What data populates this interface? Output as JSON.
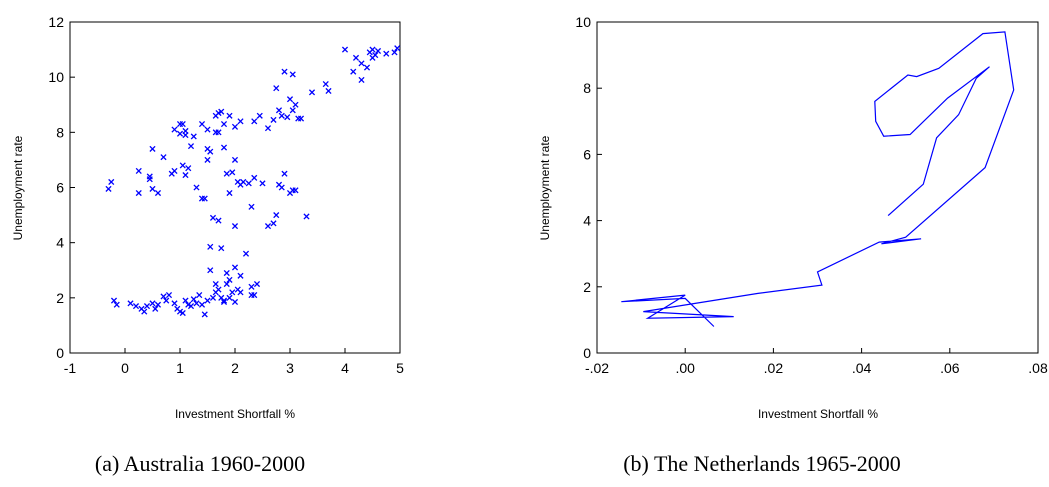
{
  "chart_data": [
    {
      "type": "scatter",
      "caption": "(a) Australia 1960-2000",
      "xlabel": "Investment Shortfall %",
      "ylabel": "Unemployment rate",
      "xlim": [
        -1,
        5
      ],
      "ylim": [
        0,
        12
      ],
      "xticks": [
        -1,
        0,
        1,
        2,
        3,
        4,
        5
      ],
      "yticks": [
        0,
        2,
        4,
        6,
        8,
        10,
        12
      ],
      "xtick_labels": [
        "-1",
        "0",
        "1",
        "2",
        "3",
        "4",
        "5"
      ],
      "ytick_labels": [
        "0",
        "2",
        "4",
        "6",
        "8",
        "10",
        "12"
      ],
      "marker_color": "#0000ff",
      "marker": "x",
      "points": [
        [
          -0.3,
          5.95
        ],
        [
          -0.25,
          6.2
        ],
        [
          0.25,
          6.6
        ],
        [
          0.25,
          5.8
        ],
        [
          0.45,
          6.3
        ],
        [
          0.45,
          6.4
        ],
        [
          0.5,
          5.95
        ],
        [
          0.6,
          5.8
        ],
        [
          0.5,
          7.4
        ],
        [
          0.7,
          7.1
        ],
        [
          0.85,
          6.5
        ],
        [
          0.9,
          6.6
        ],
        [
          1.05,
          6.8
        ],
        [
          1.1,
          6.45
        ],
        [
          1.15,
          6.7
        ],
        [
          1.3,
          6.0
        ],
        [
          0.9,
          8.1
        ],
        [
          1.0,
          8.3
        ],
        [
          1.05,
          8.3
        ],
        [
          1.1,
          8.05
        ],
        [
          1.1,
          7.9
        ],
        [
          1.0,
          7.95
        ],
        [
          1.2,
          7.5
        ],
        [
          1.25,
          7.85
        ],
        [
          1.4,
          8.3
        ],
        [
          1.5,
          8.1
        ],
        [
          1.5,
          7.4
        ],
        [
          1.5,
          7.0
        ],
        [
          1.55,
          7.3
        ],
        [
          1.65,
          8.0
        ],
        [
          1.7,
          8.0
        ],
        [
          1.65,
          8.6
        ],
        [
          1.7,
          8.7
        ],
        [
          1.75,
          8.75
        ],
        [
          1.8,
          8.3
        ],
        [
          1.9,
          8.6
        ],
        [
          2.0,
          8.2
        ],
        [
          2.1,
          8.4
        ],
        [
          1.8,
          7.45
        ],
        [
          1.85,
          6.5
        ],
        [
          1.95,
          6.55
        ],
        [
          2.0,
          7.0
        ],
        [
          2.05,
          6.2
        ],
        [
          2.15,
          6.2
        ],
        [
          2.1,
          6.1
        ],
        [
          2.25,
          6.15
        ],
        [
          1.4,
          5.6
        ],
        [
          1.45,
          5.6
        ],
        [
          1.6,
          4.9
        ],
        [
          1.7,
          4.8
        ],
        [
          1.9,
          5.8
        ],
        [
          2.0,
          4.6
        ],
        [
          2.3,
          5.3
        ],
        [
          2.35,
          6.35
        ],
        [
          2.5,
          6.15
        ],
        [
          2.6,
          4.6
        ],
        [
          2.7,
          4.7
        ],
        [
          2.75,
          5.0
        ],
        [
          2.8,
          6.1
        ],
        [
          2.85,
          6.0
        ],
        [
          2.9,
          6.5
        ],
        [
          3.0,
          5.8
        ],
        [
          3.05,
          5.9
        ],
        [
          3.1,
          5.9
        ],
        [
          3.3,
          4.95
        ],
        [
          2.35,
          8.4
        ],
        [
          2.45,
          8.6
        ],
        [
          2.6,
          8.15
        ],
        [
          2.7,
          8.45
        ],
        [
          2.75,
          9.6
        ],
        [
          2.8,
          8.8
        ],
        [
          2.85,
          8.6
        ],
        [
          2.95,
          8.55
        ],
        [
          3.0,
          9.2
        ],
        [
          3.05,
          8.8
        ],
        [
          3.1,
          9.0
        ],
        [
          3.15,
          8.5
        ],
        [
          3.2,
          8.5
        ],
        [
          2.9,
          10.2
        ],
        [
          3.05,
          10.1
        ],
        [
          3.4,
          9.45
        ],
        [
          3.65,
          9.75
        ],
        [
          3.7,
          9.5
        ],
        [
          4.0,
          11.0
        ],
        [
          4.15,
          10.2
        ],
        [
          4.2,
          10.7
        ],
        [
          4.3,
          9.9
        ],
        [
          4.3,
          10.5
        ],
        [
          4.4,
          10.35
        ],
        [
          4.45,
          10.9
        ],
        [
          4.5,
          11.0
        ],
        [
          4.5,
          10.7
        ],
        [
          4.55,
          10.8
        ],
        [
          4.6,
          10.95
        ],
        [
          4.75,
          10.85
        ],
        [
          4.9,
          10.9
        ],
        [
          4.95,
          11.05
        ],
        [
          1.55,
          3.85
        ],
        [
          1.55,
          3.0
        ],
        [
          1.75,
          3.8
        ],
        [
          1.65,
          2.5
        ],
        [
          1.7,
          2.3
        ],
        [
          1.85,
          2.9
        ],
        [
          2.0,
          3.1
        ],
        [
          2.1,
          2.8
        ],
        [
          2.2,
          3.6
        ],
        [
          2.3,
          2.4
        ],
        [
          2.4,
          2.5
        ],
        [
          2.35,
          2.1
        ],
        [
          -0.2,
          1.9
        ],
        [
          -0.15,
          1.75
        ],
        [
          0.1,
          1.8
        ],
        [
          0.2,
          1.7
        ],
        [
          0.3,
          1.6
        ],
        [
          0.35,
          1.5
        ],
        [
          0.4,
          1.7
        ],
        [
          0.5,
          1.8
        ],
        [
          0.55,
          1.6
        ],
        [
          0.6,
          1.75
        ],
        [
          0.7,
          2.05
        ],
        [
          0.75,
          1.9
        ],
        [
          0.8,
          2.1
        ],
        [
          0.9,
          1.8
        ],
        [
          0.95,
          1.6
        ],
        [
          1.0,
          1.5
        ],
        [
          1.05,
          1.45
        ],
        [
          1.1,
          1.9
        ],
        [
          1.15,
          1.75
        ],
        [
          1.2,
          1.7
        ],
        [
          1.25,
          1.95
        ],
        [
          1.3,
          1.8
        ],
        [
          1.35,
          2.1
        ],
        [
          1.4,
          1.75
        ],
        [
          1.45,
          1.4
        ],
        [
          1.5,
          1.9
        ],
        [
          1.6,
          2.0
        ],
        [
          1.65,
          2.2
        ],
        [
          1.75,
          2.0
        ],
        [
          1.8,
          1.9
        ],
        [
          1.85,
          2.5
        ],
        [
          1.9,
          2.0
        ],
        [
          1.95,
          2.2
        ],
        [
          2.0,
          1.85
        ],
        [
          2.05,
          2.3
        ],
        [
          2.1,
          2.2
        ],
        [
          1.8,
          1.85
        ],
        [
          1.9,
          2.65
        ],
        [
          2.3,
          2.1
        ]
      ]
    },
    {
      "type": "line",
      "caption": "(b) The Netherlands 1965-2000",
      "xlabel": "Investment Shortfall %",
      "ylabel": "Unemployment rate",
      "xlim": [
        -0.02,
        0.08
      ],
      "ylim": [
        0,
        10
      ],
      "xticks": [
        -0.02,
        0.0,
        0.02,
        0.04,
        0.06,
        0.08
      ],
      "yticks": [
        0,
        2,
        4,
        6,
        8,
        10
      ],
      "xtick_labels": [
        "-.02",
        ".00",
        ".02",
        ".04",
        ".06",
        ".08"
      ],
      "ytick_labels": [
        "0",
        "2",
        "4",
        "6",
        "8",
        "10"
      ],
      "line_color": "#0000ff",
      "points": [
        [
          0.0065,
          0.8
        ],
        [
          0.0,
          1.65
        ],
        [
          -0.0145,
          1.55
        ],
        [
          0.0,
          1.75
        ],
        [
          -0.0085,
          1.05
        ],
        [
          0.011,
          1.1
        ],
        [
          -0.0095,
          1.25
        ],
        [
          0.0165,
          1.8
        ],
        [
          0.031,
          2.05
        ],
        [
          0.03,
          2.45
        ],
        [
          0.044,
          3.35
        ],
        [
          0.0535,
          3.45
        ],
        [
          0.0445,
          3.3
        ],
        [
          0.05,
          3.5
        ],
        [
          0.068,
          5.6
        ],
        [
          0.0745,
          7.95
        ],
        [
          0.0725,
          9.7
        ],
        [
          0.0675,
          9.65
        ],
        [
          0.0575,
          8.6
        ],
        [
          0.0525,
          8.35
        ],
        [
          0.0505,
          8.4
        ],
        [
          0.043,
          7.6
        ],
        [
          0.0432,
          7.0
        ],
        [
          0.045,
          6.55
        ],
        [
          0.051,
          6.6
        ],
        [
          0.0595,
          7.7
        ],
        [
          0.069,
          8.65
        ],
        [
          0.066,
          8.3
        ],
        [
          0.062,
          7.2
        ],
        [
          0.057,
          6.5
        ],
        [
          0.054,
          5.1
        ],
        [
          0.046,
          4.15
        ]
      ]
    }
  ]
}
